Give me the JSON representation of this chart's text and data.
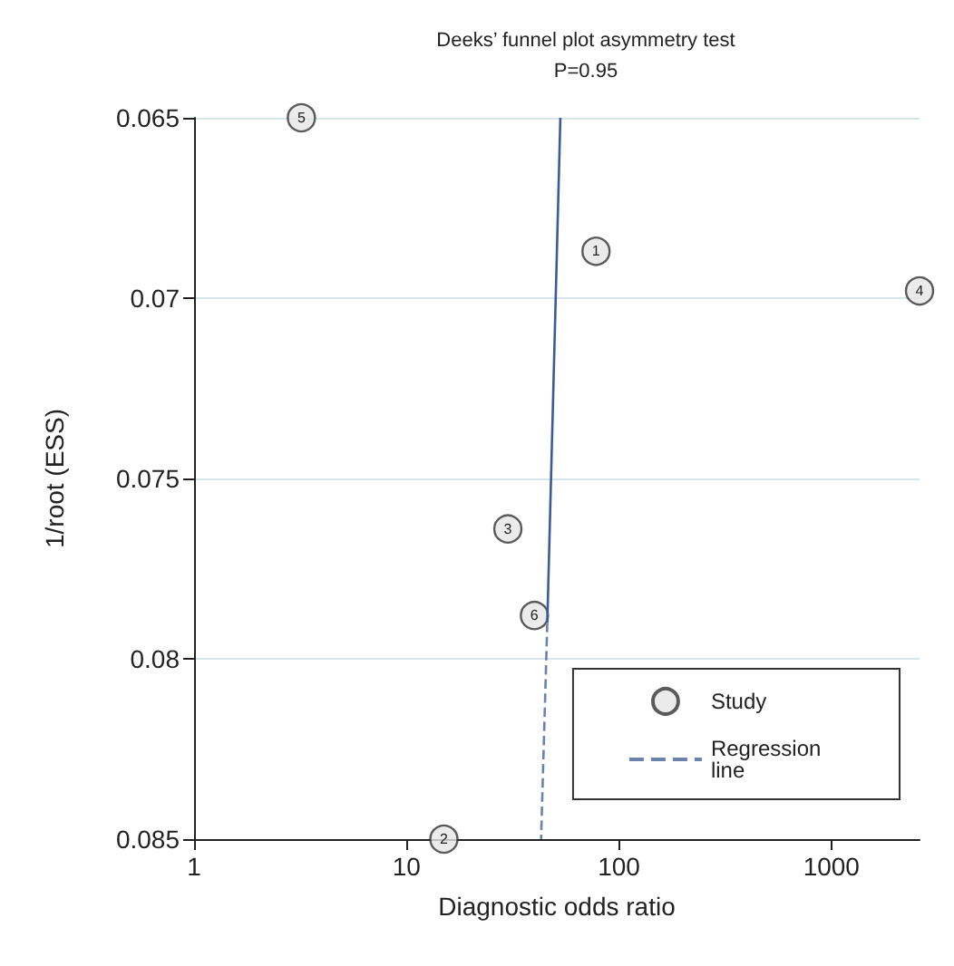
{
  "chart_data": {
    "type": "scatter",
    "title": "Deeks’ funnel plot asymmetry test",
    "subtitle": "P=0.95",
    "xlabel": "Diagnostic odds ratio",
    "ylabel": "1/root (ESS)",
    "annotations": [
      {
        "text": "1",
        "x": 78,
        "y": 0.0687
      },
      {
        "text": "2",
        "x": 15,
        "y": 0.085
      },
      {
        "text": "3",
        "x": 30,
        "y": 0.0764
      },
      {
        "text": "4",
        "x": 2600,
        "y": 0.0698
      },
      {
        "text": "5",
        "x": 3.2,
        "y": 0.065
      },
      {
        "text": "6",
        "x": 40,
        "y": 0.0788
      }
    ],
    "log": "x",
    "xlim": [
      1,
      2600
    ],
    "xticks": [
      1,
      10,
      100,
      1000
    ],
    "ylim": [
      0.085,
      0.065
    ],
    "yticks": [
      0.065,
      0.07,
      0.075,
      0.08,
      0.085
    ],
    "grid": "y",
    "legend": "bottom right",
    "series": [
      {
        "name": "Study",
        "marker": "circle",
        "color": "#e6e6e6",
        "x": [
          78,
          15,
          30,
          2600,
          3.2,
          40
        ],
        "values": [
          0.0687,
          0.085,
          0.0764,
          0.0698,
          0.065,
          0.0788
        ]
      },
      {
        "type": "line",
        "marker": "none",
        "line_style": "solid",
        "color": "#3b5b98",
        "x": [
          53,
          46
        ],
        "values": [
          0.065,
          0.079
        ]
      },
      {
        "name": "Regression line",
        "type": "line",
        "marker": "none",
        "line_style": "dashed",
        "color": "#6a82ad",
        "x": [
          46,
          43
        ],
        "values": [
          0.079,
          0.085
        ]
      }
    ]
  }
}
